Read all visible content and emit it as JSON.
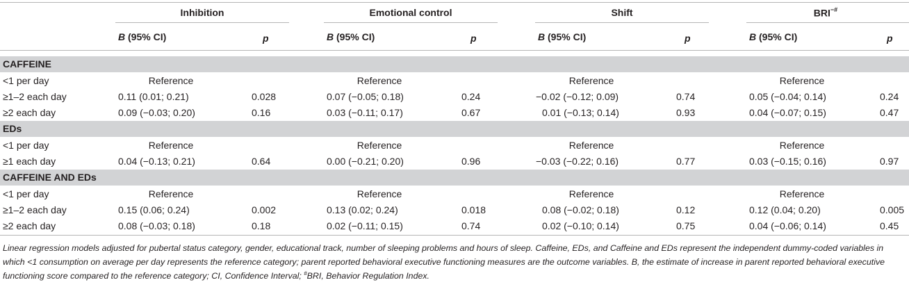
{
  "groups": [
    {
      "title": "Inhibition",
      "title_sup": ""
    },
    {
      "title": "Emotional control",
      "title_sup": ""
    },
    {
      "title": "Shift",
      "title_sup": ""
    },
    {
      "title": "BRI",
      "title_sup": "−#"
    }
  ],
  "subheaders": {
    "b_letter": "B",
    "ci_label": " (95% CI)",
    "p_label": "p"
  },
  "sections": [
    {
      "label": "CAFFEINE",
      "rows": [
        {
          "label": "<1 per day",
          "cells": [
            "Reference",
            "",
            "Reference",
            "",
            "Reference",
            "",
            "Reference",
            ""
          ]
        },
        {
          "label": "≥1–2 each day",
          "cells": [
            "0.11 (0.01; 0.21)",
            "0.028",
            "0.07 (−0.05; 0.18)",
            "0.24",
            "−0.02 (−0.12; 0.09)",
            "0.74",
            "0.05 (−0.04; 0.14)",
            "0.24"
          ]
        },
        {
          "label": "≥2 each day",
          "cells": [
            "0.09 (−0.03; 0.20)",
            "0.16",
            "0.03 (−0.11; 0.17)",
            "0.67",
            "0.01 (−0.13; 0.14)",
            "0.93",
            "0.04 (−0.07; 0.15)",
            "0.47"
          ]
        }
      ]
    },
    {
      "label": "EDs",
      "rows": [
        {
          "label": "<1 per day",
          "cells": [
            "Reference",
            "",
            "Reference",
            "",
            "Reference",
            "",
            "Reference",
            ""
          ]
        },
        {
          "label": "≥1 each day",
          "cells": [
            "0.04 (−0.13; 0.21)",
            "0.64",
            "0.00 (−0.21; 0.20)",
            "0.96",
            "−0.03 (−0.22; 0.16)",
            "0.77",
            "0.03 (−0.15; 0.16)",
            "0.97"
          ]
        }
      ]
    },
    {
      "label": "CAFFEINE AND EDs",
      "rows": [
        {
          "label": "<1 per day",
          "cells": [
            "Reference",
            "",
            "Reference",
            "",
            "Reference",
            "",
            "Reference",
            ""
          ]
        },
        {
          "label": "≥1–2 each day",
          "cells": [
            "0.15 (0.06; 0.24)",
            "0.002",
            "0.13 (0.02; 0.24)",
            "0.018",
            "0.08 (−0.02; 0.18)",
            "0.12",
            "0.12 (0.04; 0.20)",
            "0.005"
          ]
        },
        {
          "label": "≥2 each day",
          "cells": [
            "0.08 (−0.03; 0.18)",
            "0.18",
            "0.02 (−0.11; 0.15)",
            "0.74",
            "0.02 (−0.10; 0.14)",
            "0.75",
            "0.04 (−0.06; 0.14)",
            "0.45"
          ]
        }
      ]
    }
  ],
  "footnote": {
    "part1": "Linear regression models adjusted for pubertal status category, gender, educational track, number of sleeping problems and hours of sleep. Caffeine, EDs, and Caffeine and EDs represent the independent dummy-coded variables in which <1 consumption on average per day represents the reference category; parent reported behavioral executive functioning measures are the outcome variables. B, the estimate of increase in parent reported behavioral executive functioning score compared to the reference category; CI, Confidence Interval; ",
    "sup": "#",
    "part2": "BRI, Behavior Regulation Index."
  }
}
